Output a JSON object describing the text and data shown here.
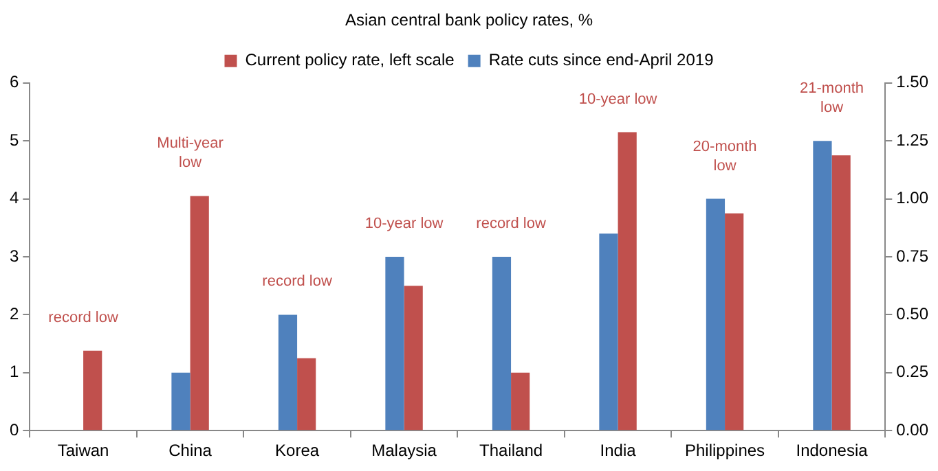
{
  "chart_data": {
    "type": "bar",
    "title": "Asian central bank policy rates, %",
    "categories": [
      "Taiwan",
      "China",
      "Korea",
      "Malaysia",
      "Thailand",
      "India",
      "Philippines",
      "Indonesia"
    ],
    "series": [
      {
        "name": "Rate cuts since end-April 2019",
        "color": "#4f81bd",
        "axis": "y2",
        "values": [
          null,
          0.25,
          0.5,
          0.75,
          0.75,
          0.85,
          1.0,
          1.25
        ]
      },
      {
        "name": "Current policy rate, left scale",
        "color": "#c0504d",
        "values": [
          1.38,
          4.05,
          1.25,
          2.5,
          1.0,
          5.15,
          3.75,
          4.75
        ]
      }
    ],
    "ylim": [
      0,
      6
    ],
    "yticks": [
      0,
      1,
      2,
      3,
      4,
      5,
      6
    ],
    "y2lim": [
      0,
      1.5
    ],
    "y2ticks": [
      {
        "value": 0,
        "label": "0.00"
      },
      {
        "value": 0.25,
        "label": "0.25"
      },
      {
        "value": 0.5,
        "label": "0.50"
      },
      {
        "value": 0.75,
        "label": "0.75"
      },
      {
        "value": 1,
        "label": "1.00"
      },
      {
        "value": 1.25,
        "label": "1.25"
      },
      {
        "value": 1.5,
        "label": "1.50"
      }
    ],
    "grid": false,
    "legend": "top",
    "annotations": [
      {
        "text": "record low",
        "x": "Taiwan",
        "y": 1.38
      },
      {
        "text": "Multi-year low",
        "x": "China",
        "y": 4.05
      },
      {
        "text": "record low",
        "x": "Korea",
        "y": 2.0
      },
      {
        "text": "10-year low",
        "x": "Malaysia",
        "y": 3.0
      },
      {
        "text": "record low",
        "x": "Thailand",
        "y": 3.0
      },
      {
        "text": "10-year low",
        "x": "India",
        "y": 5.15
      },
      {
        "text": "20-month low",
        "x": "Philippines",
        "y": 4.0
      },
      {
        "text": "21-month low",
        "x": "Indonesia",
        "y": 5.0
      }
    ]
  }
}
